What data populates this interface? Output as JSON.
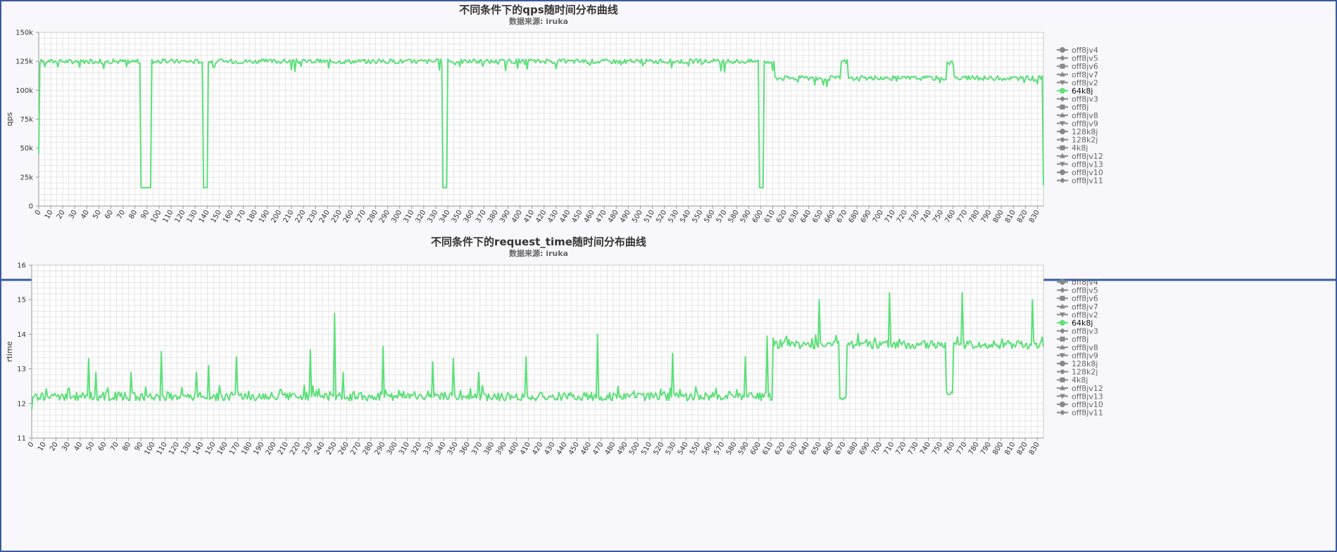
{
  "chart_data": [
    {
      "type": "line",
      "title": "不同条件下的qps随时间分布曲线",
      "subtitle": "数据来源: iruka",
      "xlabel": "",
      "ylabel": "qps",
      "ylim": [
        0,
        150000
      ],
      "yticks": [
        "0",
        "25k",
        "50k",
        "75k",
        "100k",
        "125k",
        "150k"
      ],
      "xlim": [
        0,
        835
      ],
      "xtick_step": 10,
      "grid": true,
      "legend_position": "right",
      "legend": [
        "off8jv4",
        "off8jv5",
        "off8jv6",
        "off8jv7",
        "off8jv2",
        "64k8j",
        "off8jv3",
        "off8j",
        "off8jv8",
        "off8jv9",
        "128k8j",
        "128k2j",
        "4k8j",
        "off8jv12",
        "off8jv13",
        "off8jv10",
        "off8jv11"
      ],
      "active_series": "64k8j",
      "series": [
        {
          "name": "64k8j",
          "color": "#5ce07a",
          "base": 125000,
          "noise": 2000,
          "segments": [
            {
              "from": 612,
              "to": 835,
              "value": 110500
            }
          ],
          "dips": [
            {
              "from": 85,
              "to": 93,
              "value": 16000
            },
            {
              "from": 137,
              "to": 140,
              "value": 16000
            },
            {
              "from": 336,
              "to": 339,
              "value": 16000
            },
            {
              "from": 599,
              "to": 602,
              "value": 16000
            },
            {
              "from": 835,
              "to": 835,
              "value": 18000
            }
          ],
          "bumps": [
            {
              "from": 667,
              "to": 672,
              "value": 125000
            },
            {
              "from": 755,
              "to": 760,
              "value": 124000
            }
          ],
          "start_value": 45000
        }
      ]
    },
    {
      "type": "line",
      "title": "不同条件下的request_time随时间分布曲线",
      "subtitle": "数据来源: iruka",
      "xlabel": "",
      "ylabel": "rtime",
      "ylim": [
        11,
        16
      ],
      "yticks": [
        "11",
        "12",
        "13",
        "14",
        "15",
        "16"
      ],
      "xlim": [
        0,
        835
      ],
      "xtick_step": 10,
      "grid": true,
      "legend_position": "right",
      "legend": [
        "off8jv4",
        "off8jv5",
        "off8jv6",
        "off8jv7",
        "off8jv2",
        "64k8j",
        "off8jv3",
        "off8j",
        "off8jv8",
        "off8jv9",
        "128k8j",
        "128k2j",
        "4k8j",
        "off8jv12",
        "off8jv13",
        "off8jv10",
        "off8jv11"
      ],
      "active_series": "64k8j",
      "series": [
        {
          "name": "64k8j",
          "color": "#5ce07a",
          "base": 12.2,
          "noise": 0.12,
          "segments": [
            {
              "from": 612,
              "to": 835,
              "value": 13.7
            }
          ],
          "dips": [
            {
              "from": 667,
              "to": 672,
              "value": 12.15
            },
            {
              "from": 755,
              "to": 760,
              "value": 12.3
            }
          ],
          "spikes": [
            {
              "x": 47,
              "value": 13.3
            },
            {
              "x": 53,
              "value": 12.9
            },
            {
              "x": 82,
              "value": 12.9
            },
            {
              "x": 107,
              "value": 13.5
            },
            {
              "x": 136,
              "value": 12.9
            },
            {
              "x": 146,
              "value": 13.1
            },
            {
              "x": 169,
              "value": 13.35
            },
            {
              "x": 230,
              "value": 13.55
            },
            {
              "x": 250,
              "value": 14.6
            },
            {
              "x": 257,
              "value": 12.9
            },
            {
              "x": 290,
              "value": 13.65
            },
            {
              "x": 331,
              "value": 13.2
            },
            {
              "x": 348,
              "value": 13.3
            },
            {
              "x": 369,
              "value": 12.9
            },
            {
              "x": 408,
              "value": 13.35
            },
            {
              "x": 467,
              "value": 14.0
            },
            {
              "x": 529,
              "value": 13.45
            },
            {
              "x": 589,
              "value": 13.35
            },
            {
              "x": 607,
              "value": 13.95
            },
            {
              "x": 650,
              "value": 15.0
            },
            {
              "x": 708,
              "value": 15.2
            },
            {
              "x": 768,
              "value": 15.2
            },
            {
              "x": 826,
              "value": 15.0
            }
          ],
          "start_value": 11.8
        }
      ]
    }
  ]
}
